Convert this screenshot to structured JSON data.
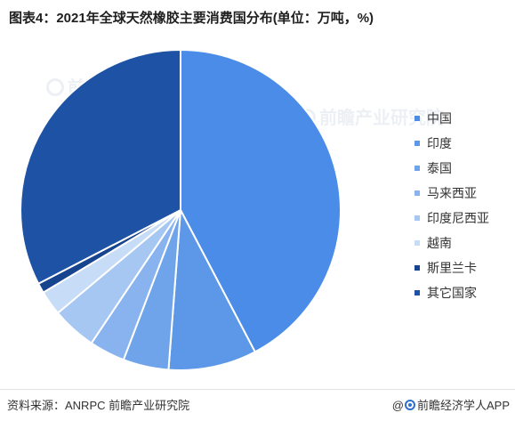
{
  "chart_data": {
    "type": "pie",
    "title": "图表4：2021年全球天然橡胶主要消费国分布(单位：万吨，%)",
    "categories": [
      "中国",
      "印度",
      "泰国",
      "马来西亚",
      "印度尼西亚",
      "越南",
      "斯里兰卡",
      "其它国家"
    ],
    "values": [
      42.3,
      8.9,
      4.6,
      3.6,
      4.5,
      2.5,
      1.0,
      32.6
    ],
    "colors": [
      "#4a8ce8",
      "#5c97e8",
      "#6fa4ea",
      "#88b3ee",
      "#a6c7f2",
      "#c7dcf6",
      "#16448e",
      "#1e52a4"
    ],
    "legend_position": "right"
  },
  "footer": {
    "source": "资料来源：ANRPC 前瞻产业研究院",
    "brand_prefix": "@",
    "brand": "前瞻经济学人APP"
  },
  "watermark": "前瞻产业研究院"
}
